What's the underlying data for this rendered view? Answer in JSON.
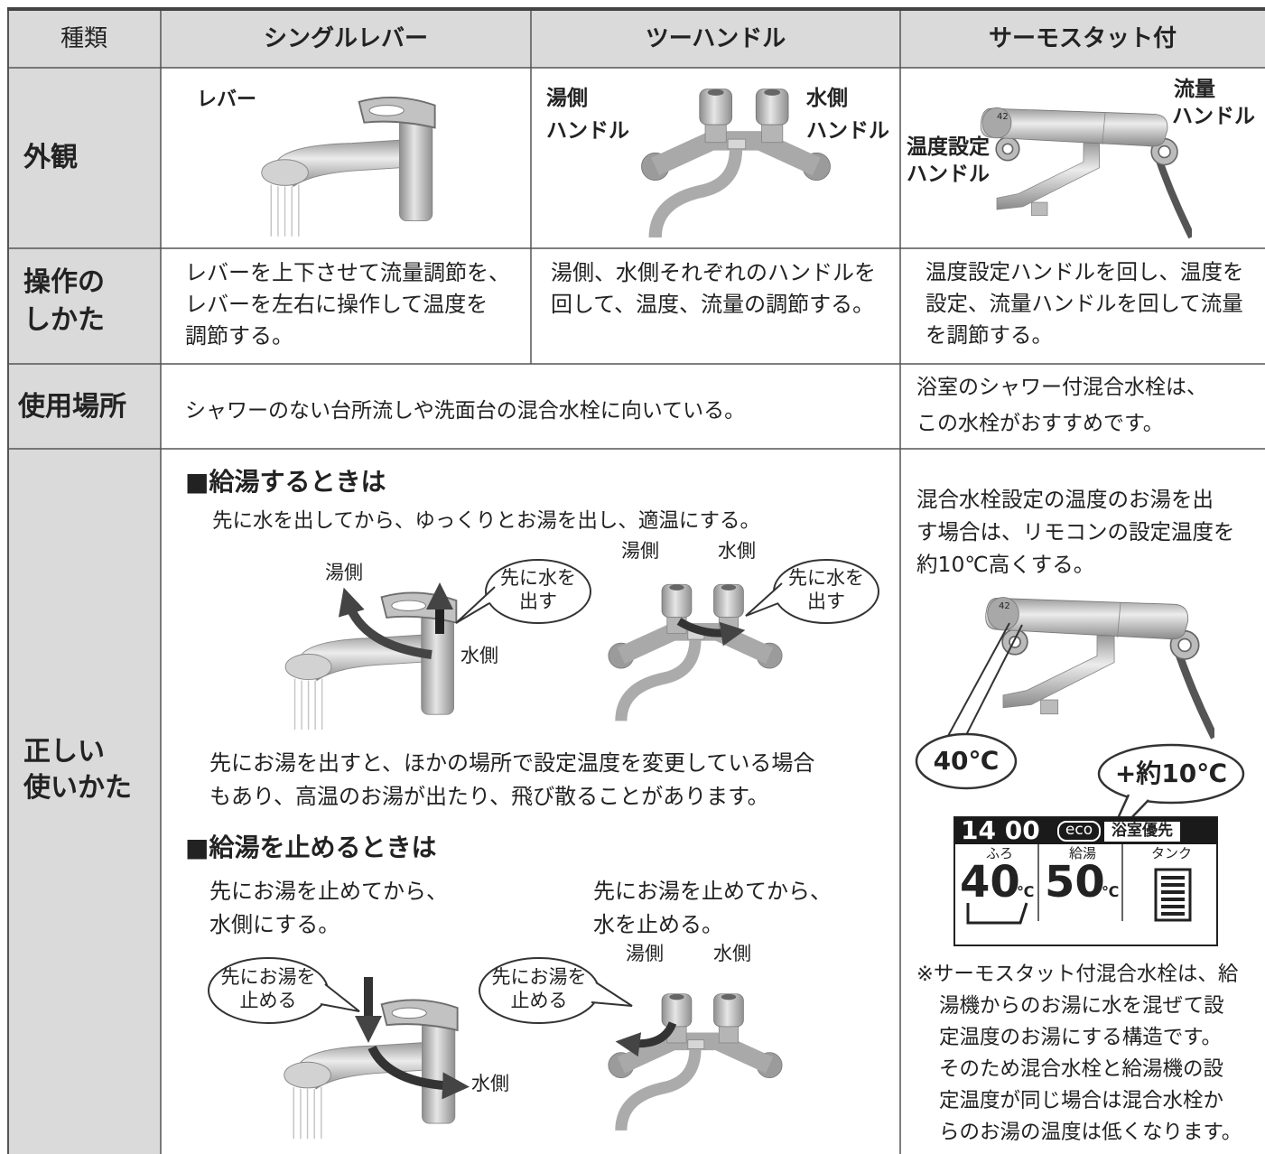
{
  "table": {
    "header": [
      "種類",
      "シングルレバー",
      "ツーハンドル",
      "サーモスタット付"
    ],
    "appearance": {
      "label": "外観",
      "single_lever": "レバー",
      "two_handle": {
        "hot": [
          "湯側",
          "ハンドル"
        ],
        "cold": [
          "水側",
          "ハンドル"
        ]
      },
      "thermostat": {
        "flow": [
          "流量",
          "ハンドル"
        ],
        "temp": [
          "温度設定",
          "ハンドル"
        ],
        "dial": "42"
      }
    },
    "operation": {
      "label": [
        "操作の",
        "しかた"
      ],
      "single_lever": [
        "レバーを上下させて流量調節を、",
        "レバーを左右に操作して温度を",
        "調節する。"
      ],
      "two_handle": [
        "湯側、水側それぞれのハンドルを",
        "回して、温度、流量の調節する。"
      ],
      "thermostat": [
        "温度設定ハンドルを回し、温度を",
        "設定、流量ハンドルを回して流量",
        "を調節する。"
      ]
    },
    "place": {
      "label": "使用場所",
      "single_and_two": "シャワーのない台所流しや洗面台の混合水栓に向いている。",
      "thermostat": [
        "浴室のシャワー付混合水栓は、",
        "この水栓がおすすめです。"
      ]
    },
    "usage": {
      "label": [
        "正しい",
        "使いかた"
      ],
      "start": {
        "heading": "■給湯するときは",
        "text": "先に水を出してから、ゆっくりとお湯を出し、適温にする。",
        "single_lever": {
          "hot": "湯側",
          "cold": "水側",
          "bubble": [
            "先に水を",
            "出す"
          ]
        },
        "two_handle": {
          "hot": "湯側",
          "cold": "水側",
          "bubble": [
            "先に水を",
            "出す"
          ]
        },
        "warning": [
          "先にお湯を出すと、ほかの場所で設定温度を変更している場合",
          "もあり、高温のお湯が出たり、飛び散ることがあります。"
        ]
      },
      "stop": {
        "heading": "■給湯を止めるときは",
        "single_lever": {
          "text": [
            "先にお湯を止めてから、",
            "水側にする。"
          ],
          "bubble": [
            "先にお湯を",
            "止める"
          ],
          "cold": "水側"
        },
        "two_handle": {
          "text": [
            "先にお湯を止めてから、",
            "水を止める。"
          ],
          "hot": "湯側",
          "cold": "水側",
          "bubble": [
            "先にお湯を",
            "止める"
          ]
        }
      },
      "thermostat": {
        "text": [
          "混合水栓設定の温度のお湯を出",
          "す場合は、リモコンの設定温度を",
          "約10℃高くする。"
        ],
        "dial": "42",
        "faucet_temp": "40℃",
        "raise": "+約10℃",
        "remote": {
          "time": "14 00",
          "eco": "eco",
          "mode": "浴室優先",
          "bath_label": "ふろ",
          "supply_label": "給湯",
          "tank_label": "タンク",
          "bath_temp": "40",
          "supply_temp": "50",
          "unit": "℃"
        },
        "note": [
          "※サーモスタット付混合水栓は、給",
          "湯機からのお湯に水を混ぜて設",
          "定温度のお湯にする構造です。",
          "そのため混合水栓と給湯機の設",
          "定温度が同じ場合は混合水栓か",
          "らのお湯の温度は低くなります。"
        ]
      }
    }
  }
}
